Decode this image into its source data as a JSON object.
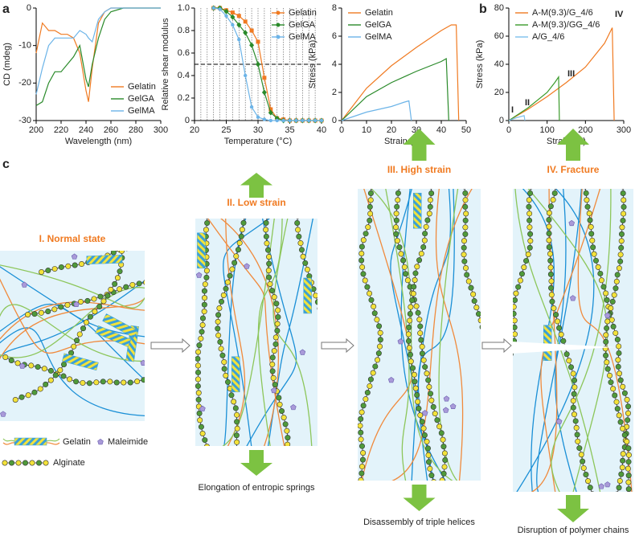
{
  "panel_labels": [
    "a",
    "b",
    "c"
  ],
  "chart_data": [
    {
      "type": "line",
      "xlabel": "Wavelength (nm)",
      "ylabel": "CD (mdeg)",
      "xlim": [
        200,
        300
      ],
      "ylim": [
        -30,
        0
      ],
      "xticks": [
        200,
        220,
        240,
        260,
        280,
        300
      ],
      "yticks": [
        -30,
        -20,
        -10,
        0
      ],
      "legend": "lower right",
      "x": [
        200,
        205,
        210,
        215,
        220,
        225,
        230,
        235,
        240,
        242,
        245,
        250,
        255,
        260,
        270,
        280,
        290,
        300
      ],
      "series": [
        {
          "name": "Gelatin",
          "color": "#f07a21",
          "values": [
            -12,
            -4,
            -6,
            -6,
            -7,
            -7,
            -8,
            -12,
            -22,
            -25,
            -16,
            -4,
            -1,
            0,
            0,
            0,
            0,
            0
          ]
        },
        {
          "name": "GelGA",
          "color": "#2a8a2a",
          "values": [
            -26,
            -25,
            -20,
            -17,
            -17,
            -15,
            -13,
            -10,
            -19,
            -21,
            -15,
            -8,
            -3,
            -1,
            0,
            0,
            0,
            0
          ]
        },
        {
          "name": "GelMA",
          "color": "#6cb4e8",
          "values": [
            -23,
            -16,
            -10,
            -8,
            -8,
            -8,
            -8,
            -6,
            -7,
            -8,
            -9,
            -3,
            -1,
            0,
            0,
            0,
            0,
            0
          ]
        }
      ]
    },
    {
      "type": "line",
      "xlabel": "Temperature (°C)",
      "ylabel": "Relative shear modulus",
      "xlim": [
        20,
        40
      ],
      "ylim": [
        0,
        1
      ],
      "xticks": [
        20,
        25,
        30,
        35,
        40
      ],
      "yticks": [
        0,
        0.2,
        0.4,
        0.6,
        0.8,
        {
          "value": 1,
          "label": "1.0"
        }
      ],
      "x_gridlines": [
        21,
        22,
        23,
        24,
        25,
        26,
        27,
        28,
        29,
        30,
        31,
        32,
        33,
        34,
        35,
        36,
        37,
        38,
        39
      ],
      "hline": 0.5,
      "legend": "upper right",
      "x": [
        23,
        24,
        25,
        26,
        27,
        28,
        29,
        30,
        31,
        32,
        33,
        34,
        35,
        36,
        37,
        38,
        39,
        40
      ],
      "series": [
        {
          "name": "Gelatin",
          "color": "#f07a21",
          "marker": "square",
          "values": [
            1,
            1,
            0.98,
            0.96,
            0.93,
            0.88,
            0.8,
            0.7,
            0.38,
            0.1,
            0.02,
            0.01,
            0,
            0,
            0,
            0,
            0,
            0
          ]
        },
        {
          "name": "GelGA",
          "color": "#2a8a2a",
          "marker": "diamond",
          "values": [
            1,
            1,
            0.97,
            0.92,
            0.85,
            0.78,
            0.67,
            0.5,
            0.25,
            0.07,
            0.02,
            0,
            0,
            0,
            0,
            0,
            0,
            0
          ]
        },
        {
          "name": "GelMA",
          "color": "#6cb4e8",
          "marker": "circle",
          "values": [
            1,
            0.99,
            0.93,
            0.85,
            0.72,
            0.4,
            0.12,
            0.03,
            0.01,
            0,
            0,
            0,
            0,
            0,
            0,
            0,
            0,
            0
          ]
        }
      ]
    },
    {
      "type": "line",
      "xlabel": "Strain (%)",
      "ylabel": "Stress (kPa)",
      "xlim": [
        0,
        50
      ],
      "ylim": [
        0,
        8
      ],
      "xticks": [
        0,
        10,
        20,
        30,
        40,
        50
      ],
      "yticks": [
        0,
        2,
        4,
        6,
        8
      ],
      "legend": "upper left",
      "series": [
        {
          "name": "Gelatin",
          "color": "#f07a21",
          "x": [
            0,
            10,
            20,
            30,
            40,
            44,
            46,
            47
          ],
          "values": [
            0,
            2.3,
            3.9,
            5.2,
            6.4,
            6.8,
            6.8,
            0
          ]
        },
        {
          "name": "GelGA",
          "color": "#2a8a2a",
          "x": [
            0,
            10,
            20,
            30,
            40,
            42,
            43
          ],
          "values": [
            0,
            1.7,
            2.7,
            3.5,
            4.2,
            4.4,
            0
          ]
        },
        {
          "name": "GelMA",
          "color": "#6cb4e8",
          "x": [
            0,
            10,
            20,
            25,
            27,
            28
          ],
          "values": [
            0,
            0.6,
            1,
            1.3,
            1.4,
            0
          ]
        }
      ]
    },
    {
      "type": "line",
      "xlabel": "Strain (%)",
      "ylabel": "Stress (kPa)",
      "xlim": [
        0,
        300
      ],
      "ylim": [
        0,
        80
      ],
      "xticks": [
        0,
        100,
        200,
        300
      ],
      "yticks": [
        0,
        20,
        40,
        60,
        80
      ],
      "legend": "upper left",
      "annotations": [
        "I",
        "II",
        "III",
        "IV"
      ],
      "series": [
        {
          "name": "A-M(9.3)/G_4/6",
          "color": "#f07a21",
          "x": [
            0,
            50,
            100,
            150,
            200,
            250,
            270,
            275
          ],
          "values": [
            0,
            8,
            17,
            27,
            38,
            55,
            66,
            0
          ]
        },
        {
          "name": "A-M(9.3)/GG_4/6",
          "color": "#3a9a2a",
          "x": [
            0,
            50,
            100,
            120,
            130,
            132
          ],
          "values": [
            0,
            9,
            20,
            27,
            31,
            0
          ]
        },
        {
          "name": "A/G_4/6",
          "color": "#7cc0ec",
          "x": [
            0,
            20,
            40,
            42
          ],
          "values": [
            0,
            2,
            3.5,
            0
          ]
        }
      ]
    }
  ],
  "diagram": {
    "stages": [
      {
        "title": "I. Normal state"
      },
      {
        "title": "II. Low strain",
        "caption": "Elongation of entropic springs"
      },
      {
        "title": "III. High strain",
        "caption": "Disassembly of triple helices"
      },
      {
        "title": "IV. Fracture",
        "caption": "Disruption of polymer chains"
      }
    ],
    "legend": {
      "gelatin": "Gelatin",
      "maleimide": "Maleimide",
      "alginate": "Alginate"
    }
  }
}
